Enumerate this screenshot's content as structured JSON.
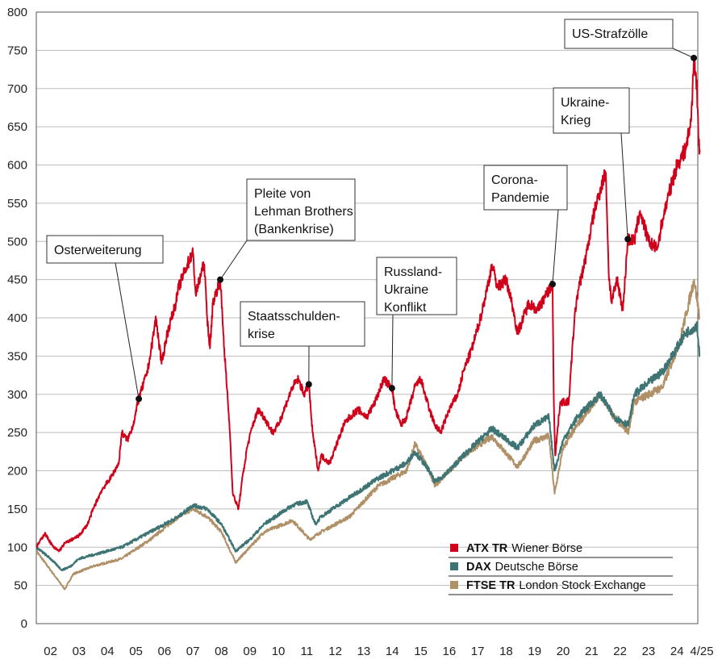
{
  "chart_data": {
    "type": "line",
    "title": "",
    "xlabel": "",
    "ylabel": "",
    "ylim": [
      0,
      800
    ],
    "xlim": [
      2002,
      2025.3
    ],
    "grid": true,
    "y_ticks": [
      "0",
      "50",
      "100",
      "150",
      "200",
      "250",
      "300",
      "350",
      "400",
      "450",
      "500",
      "550",
      "600",
      "650",
      "700",
      "750",
      "800"
    ],
    "x_ticks": [
      "02",
      "03",
      "04",
      "05",
      "06",
      "07",
      "08",
      "09",
      "10",
      "11",
      "12",
      "13",
      "14",
      "15",
      "16",
      "17",
      "18",
      "19",
      "20",
      "21",
      "22",
      "23",
      "24",
      "4/25"
    ],
    "legend_position": "bottom-right",
    "series": [
      {
        "name": "ATX TR",
        "desc": "Wiener Börse",
        "color": "#d0021b",
        "x": [
          2002,
          2002.3,
          2002.6,
          2002.8,
          2003,
          2003.5,
          2003.8,
          2004,
          2004.3,
          2004.6,
          2004.9,
          2005,
          2005.2,
          2005.4,
          2005.6,
          2005.9,
          2006,
          2006.2,
          2006.4,
          2006.6,
          2006.9,
          2007,
          2007.3,
          2007.5,
          2007.6,
          2007.8,
          2007.9,
          2008,
          2008.1,
          2008.2,
          2008.46,
          2008.6,
          2008.8,
          2008.9,
          2009.1,
          2009.2,
          2009.4,
          2009.6,
          2009.8,
          2010,
          2010.3,
          2010.5,
          2010.8,
          2011,
          2011.2,
          2011.4,
          2011.57,
          2011.7,
          2011.9,
          2012,
          2012.3,
          2012.5,
          2012.8,
          2013,
          2013.3,
          2013.6,
          2013.9,
          2014,
          2014.2,
          2014.49,
          2014.6,
          2014.8,
          2015,
          2015.3,
          2015.5,
          2015.8,
          2016,
          2016.2,
          2016.5,
          2016.8,
          2017,
          2017.3,
          2017.6,
          2017.9,
          2018,
          2018.2,
          2018.5,
          2018.7,
          2018.9,
          2019,
          2019.3,
          2019.6,
          2019.9,
          2020.13,
          2020.17,
          2020.22,
          2020.4,
          2020.7,
          2020.9,
          2021,
          2021.3,
          2021.6,
          2021.9,
          2022,
          2022.1,
          2022.2,
          2022.4,
          2022.6,
          2022.77,
          2023,
          2023.2,
          2023.5,
          2023.8,
          2024,
          2024.2,
          2024.5,
          2024.8,
          2025,
          2025.09,
          2025.2,
          2025.25,
          2025.3
        ],
        "values": [
          100,
          118,
          100,
          95,
          105,
          115,
          130,
          150,
          175,
          190,
          210,
          250,
          240,
          260,
          294,
          330,
          350,
          400,
          340,
          380,
          420,
          440,
          470,
          485,
          430,
          460,
          470,
          400,
          360,
          420,
          450,
          360,
          250,
          170,
          150,
          180,
          230,
          260,
          280,
          270,
          250,
          260,
          290,
          310,
          320,
          300,
          313,
          250,
          200,
          220,
          210,
          230,
          260,
          270,
          280,
          270,
          290,
          300,
          320,
          308,
          280,
          260,
          270,
          310,
          320,
          280,
          260,
          250,
          280,
          300,
          330,
          360,
          400,
          450,
          470,
          440,
          450,
          420,
          380,
          390,
          420,
          410,
          430,
          444,
          300,
          220,
          290,
          290,
          400,
          430,
          480,
          540,
          580,
          590,
          460,
          420,
          450,
          410,
          503,
          500,
          540,
          500,
          490,
          530,
          560,
          600,
          620,
          660,
          740,
          700,
          640,
          620
        ]
      },
      {
        "name": "DAX",
        "desc": "Deutsche Börse",
        "color": "#3e7474",
        "x": [
          2002,
          2002.5,
          2002.9,
          2003.2,
          2003.5,
          2004,
          2005,
          2006,
          2007,
          2007.5,
          2008,
          2008.5,
          2009,
          2009.5,
          2010,
          2011,
          2011.5,
          2011.8,
          2012,
          2013,
          2014,
          2015,
          2015.3,
          2015.8,
          2016,
          2016.5,
          2017,
          2018,
          2018.9,
          2019.5,
          2020,
          2020.2,
          2020.5,
          2021,
          2021.8,
          2022.3,
          2022.8,
          2023,
          2024,
          2024.8,
          2025.2,
          2025.3
        ],
        "values": [
          100,
          85,
          70,
          75,
          85,
          90,
          100,
          120,
          140,
          155,
          150,
          130,
          95,
          110,
          130,
          155,
          160,
          130,
          140,
          165,
          190,
          210,
          225,
          200,
          185,
          200,
          220,
          255,
          230,
          260,
          270,
          200,
          240,
          270,
          300,
          270,
          260,
          300,
          330,
          380,
          390,
          350
        ]
      },
      {
        "name": "FTSE TR",
        "desc": "London Stock Exchange",
        "color": "#b09066",
        "x": [
          2002,
          2002.5,
          2003,
          2003.3,
          2004,
          2005,
          2006,
          2007,
          2007.5,
          2008,
          2008.5,
          2009,
          2009.5,
          2010,
          2011,
          2011.6,
          2012,
          2013,
          2014,
          2015,
          2015.3,
          2015.8,
          2016,
          2016.5,
          2017,
          2018,
          2018.9,
          2019.5,
          2020,
          2020.2,
          2020.5,
          2021,
          2021.8,
          2022.3,
          2022.8,
          2023,
          2024,
          2024.6,
          2025.1,
          2025.3
        ],
        "values": [
          95,
          70,
          45,
          65,
          75,
          85,
          110,
          140,
          150,
          140,
          120,
          80,
          100,
          120,
          135,
          110,
          120,
          140,
          180,
          200,
          235,
          200,
          180,
          200,
          220,
          245,
          205,
          240,
          245,
          170,
          230,
          260,
          300,
          270,
          250,
          290,
          310,
          370,
          450,
          400
        ]
      }
    ],
    "annotations": [
      {
        "text": [
          "Osterweiterung"
        ],
        "x": 2005.6,
        "y": 294
      },
      {
        "text": [
          "Pleite von",
          "Lehman Brothers",
          "(Bankenkrise)"
        ],
        "x": 2008.46,
        "y": 450
      },
      {
        "text": [
          "Staatsschulden-",
          "krise"
        ],
        "x": 2011.57,
        "y": 313
      },
      {
        "text": [
          "Russland-",
          "Ukraine",
          "Konflikt"
        ],
        "x": 2014.49,
        "y": 308
      },
      {
        "text": [
          "Corona-",
          "Pandemie"
        ],
        "x": 2020.13,
        "y": 444
      },
      {
        "text": [
          "Ukraine-",
          "Krieg"
        ],
        "x": 2022.77,
        "y": 503
      },
      {
        "text": [
          "US-Strafzölle"
        ],
        "x": 2025.09,
        "y": 740
      }
    ]
  }
}
